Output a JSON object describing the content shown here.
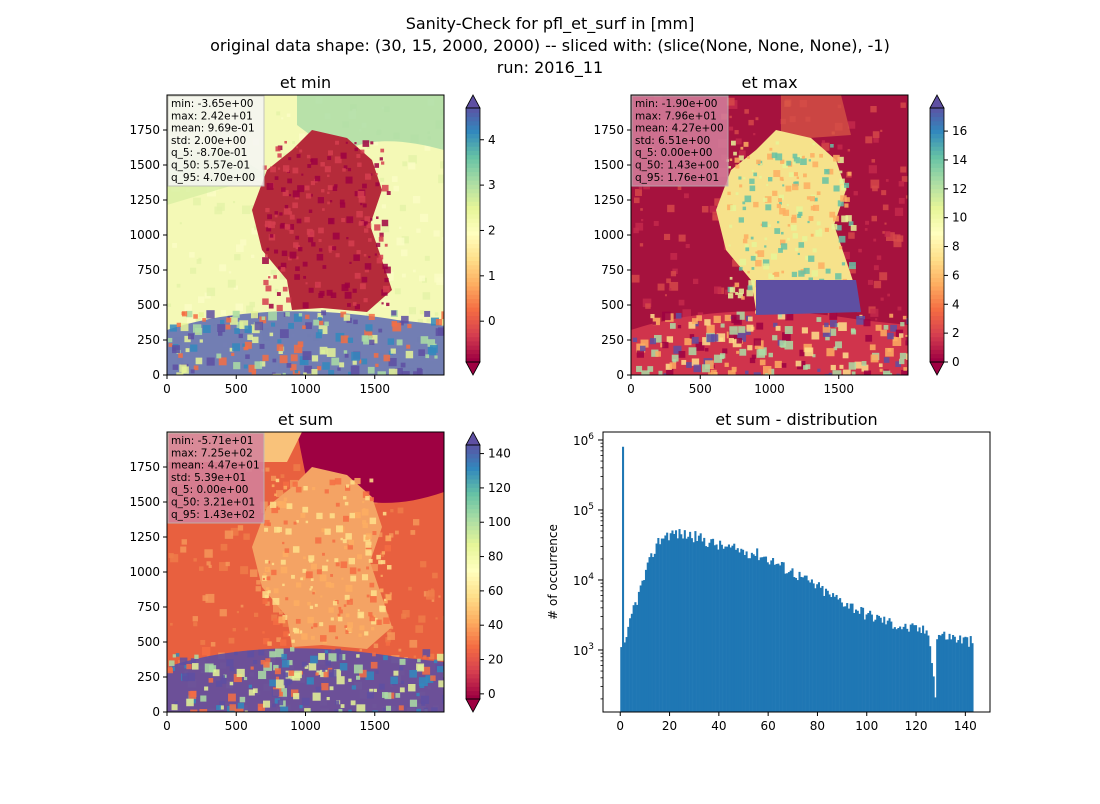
{
  "suptitle": {
    "line1": "Sanity-Check for pfl_et_surf in [mm]",
    "line2": "original data shape: (30, 15, 2000, 2000) -- sliced with: (slice(None, None, None), -1)",
    "line3": "run: 2016_11"
  },
  "colors": {
    "hist_bar": "#1f77b4",
    "stats_box_light": "#f6f6f6",
    "stats_box_pink": "#d4819e",
    "land_red": "#b4203a",
    "sea_pale": "#eef6b0",
    "alps_blue": "#4a5aa6"
  },
  "chart_data": [
    {
      "type": "heatmap",
      "title": "et min",
      "cmap": "Spectral",
      "xlim": [
        0,
        2000
      ],
      "ylim": [
        0,
        2000
      ],
      "xticks": [
        "0",
        "500",
        "1000",
        "1500"
      ],
      "yticks": [
        "0",
        "250",
        "500",
        "750",
        "1000",
        "1250",
        "1500",
        "1750"
      ],
      "colorbar": {
        "min": -0.9,
        "max": 4.7,
        "ticks": [
          "0",
          "1",
          "2",
          "3",
          "4"
        ],
        "tick_values": [
          0,
          1,
          2,
          3,
          4
        ],
        "extend": "both"
      },
      "stats": [
        "min: -3.65e+00",
        "max: 2.42e+01",
        "mean: 9.69e-01",
        "std: 2.00e+00",
        "q_5: -8.70e-01",
        "q_50: 5.57e-01",
        "q_95: 4.70e+00"
      ],
      "scheme": "min"
    },
    {
      "type": "heatmap",
      "title": "et max",
      "cmap": "Spectral",
      "xlim": [
        0,
        2000
      ],
      "ylim": [
        0,
        2000
      ],
      "xticks": [
        "0",
        "500",
        "1000",
        "1500"
      ],
      "yticks": [
        "0",
        "250",
        "500",
        "750",
        "1000",
        "1250",
        "1500",
        "1750"
      ],
      "colorbar": {
        "min": 0,
        "max": 17.6,
        "ticks": [
          "0",
          "2",
          "4",
          "6",
          "8",
          "10",
          "12",
          "14",
          "16"
        ],
        "tick_values": [
          0,
          2,
          4,
          6,
          8,
          10,
          12,
          14,
          16
        ],
        "extend": "both"
      },
      "stats": [
        "min: -1.90e+00",
        "max: 7.96e+01",
        "mean: 4.27e+00",
        "std: 6.51e+00",
        "q_5: 0.00e+00",
        "q_50: 1.43e+00",
        "q_95: 1.76e+01"
      ],
      "scheme": "max"
    },
    {
      "type": "heatmap",
      "title": "et sum",
      "cmap": "Spectral",
      "xlim": [
        0,
        2000
      ],
      "ylim": [
        0,
        2000
      ],
      "xticks": [
        "0",
        "500",
        "1000",
        "1500"
      ],
      "yticks": [
        "0",
        "250",
        "500",
        "750",
        "1000",
        "1250",
        "1500",
        "1750"
      ],
      "colorbar": {
        "min": -3,
        "max": 145,
        "ticks": [
          "0",
          "20",
          "40",
          "60",
          "80",
          "100",
          "120",
          "140"
        ],
        "tick_values": [
          0,
          20,
          40,
          60,
          80,
          100,
          120,
          140
        ],
        "extend": "both"
      },
      "stats": [
        "min: -5.71e+01",
        "max: 7.25e+02",
        "mean: 4.47e+01",
        "std: 5.39e+01",
        "q_5: 0.00e+00",
        "q_50: 3.21e+01",
        "q_95: 1.43e+02"
      ],
      "scheme": "sum"
    },
    {
      "type": "bar",
      "title": "et sum - distribution",
      "ylabel": "# of occurrence",
      "xlabel": "",
      "yscale": "log",
      "xlim": [
        -7,
        150
      ],
      "ylim": [
        130,
        1300000
      ],
      "xticks": [
        "0",
        "20",
        "40",
        "60",
        "80",
        "100",
        "120",
        "140"
      ],
      "xtick_values": [
        0,
        20,
        40,
        60,
        80,
        100,
        120,
        140
      ],
      "yticks": [
        {
          "base": "10",
          "exp": "3",
          "value": 1000
        },
        {
          "base": "10",
          "exp": "4",
          "value": 10000
        },
        {
          "base": "10",
          "exp": "5",
          "value": 100000
        },
        {
          "base": "10",
          "exp": "6",
          "value": 1000000
        }
      ],
      "bin_width": 0.716,
      "x_start": 0,
      "x_end": 143,
      "anchors": [
        [
          0,
          1100
        ],
        [
          0.7,
          800000
        ],
        [
          1.4,
          1100
        ],
        [
          2.5,
          1500
        ],
        [
          3.5,
          2500
        ],
        [
          5,
          4000
        ],
        [
          7,
          6000
        ],
        [
          9,
          10000
        ],
        [
          11,
          16000
        ],
        [
          13,
          25000
        ],
        [
          15,
          35000
        ],
        [
          17,
          42000
        ],
        [
          19,
          45000
        ],
        [
          22,
          47000
        ],
        [
          25,
          45000
        ],
        [
          28,
          44000
        ],
        [
          31,
          41000
        ],
        [
          35,
          36000
        ],
        [
          40,
          31000
        ],
        [
          45,
          28000
        ],
        [
          50,
          26000
        ],
        [
          55,
          24000
        ],
        [
          60,
          20000
        ],
        [
          65,
          16000
        ],
        [
          70,
          13000
        ],
        [
          75,
          10000
        ],
        [
          80,
          8000
        ],
        [
          85,
          6000
        ],
        [
          90,
          5000
        ],
        [
          95,
          4000
        ],
        [
          100,
          3200
        ],
        [
          105,
          2800
        ],
        [
          110,
          2400
        ],
        [
          115,
          2100
        ],
        [
          120,
          2000
        ],
        [
          125,
          1800
        ],
        [
          127.5,
          210
        ],
        [
          128.2,
          1700
        ],
        [
          135,
          1500
        ],
        [
          143,
          1300
        ]
      ]
    }
  ]
}
